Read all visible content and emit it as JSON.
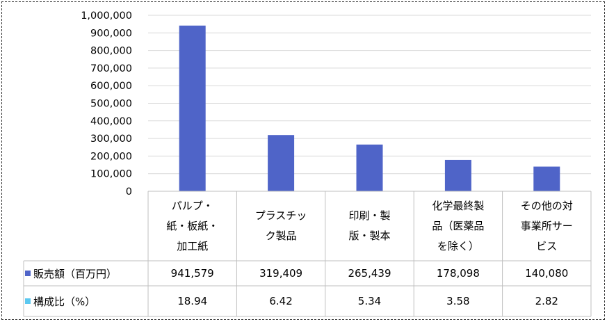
{
  "chart_data": {
    "type": "bar",
    "categories": [
      "パルプ・紙・板紙・加工紙",
      "プラスチック製品",
      "印刷・製版・製本",
      "化学最終製品（医薬品を除く）",
      "その他の対事業所サービス"
    ],
    "category_lines": [
      [
        "パルプ・",
        "紙・板紙・",
        "加工紙"
      ],
      [
        "プラスチッ",
        "ク製品"
      ],
      [
        "印刷・製",
        "版・製本"
      ],
      [
        "化学最終製",
        "品（医薬品",
        "を除く）"
      ],
      [
        "その他の対",
        "事業所サー",
        "ビス"
      ]
    ],
    "series": [
      {
        "name": "販売額（百万円）",
        "color": "#4F64C8",
        "values": [
          941579,
          319409,
          265439,
          178098,
          140080
        ],
        "labels": [
          "941,579",
          "319,409",
          "265,439",
          "178,098",
          "140,080"
        ]
      },
      {
        "name": "構成比（%）",
        "color": "#5BC8F0",
        "values": [
          18.94,
          6.42,
          5.34,
          3.58,
          2.82
        ],
        "labels": [
          "18.94",
          "6.42",
          "5.34",
          "3.58",
          "2.82"
        ]
      }
    ],
    "ylim": [
      0,
      1000000
    ],
    "yticks": [
      "0",
      "100,000",
      "200,000",
      "300,000",
      "400,000",
      "500,000",
      "600,000",
      "700,000",
      "800,000",
      "900,000",
      "1,000,000"
    ],
    "grid": true,
    "legend": "data-table"
  }
}
